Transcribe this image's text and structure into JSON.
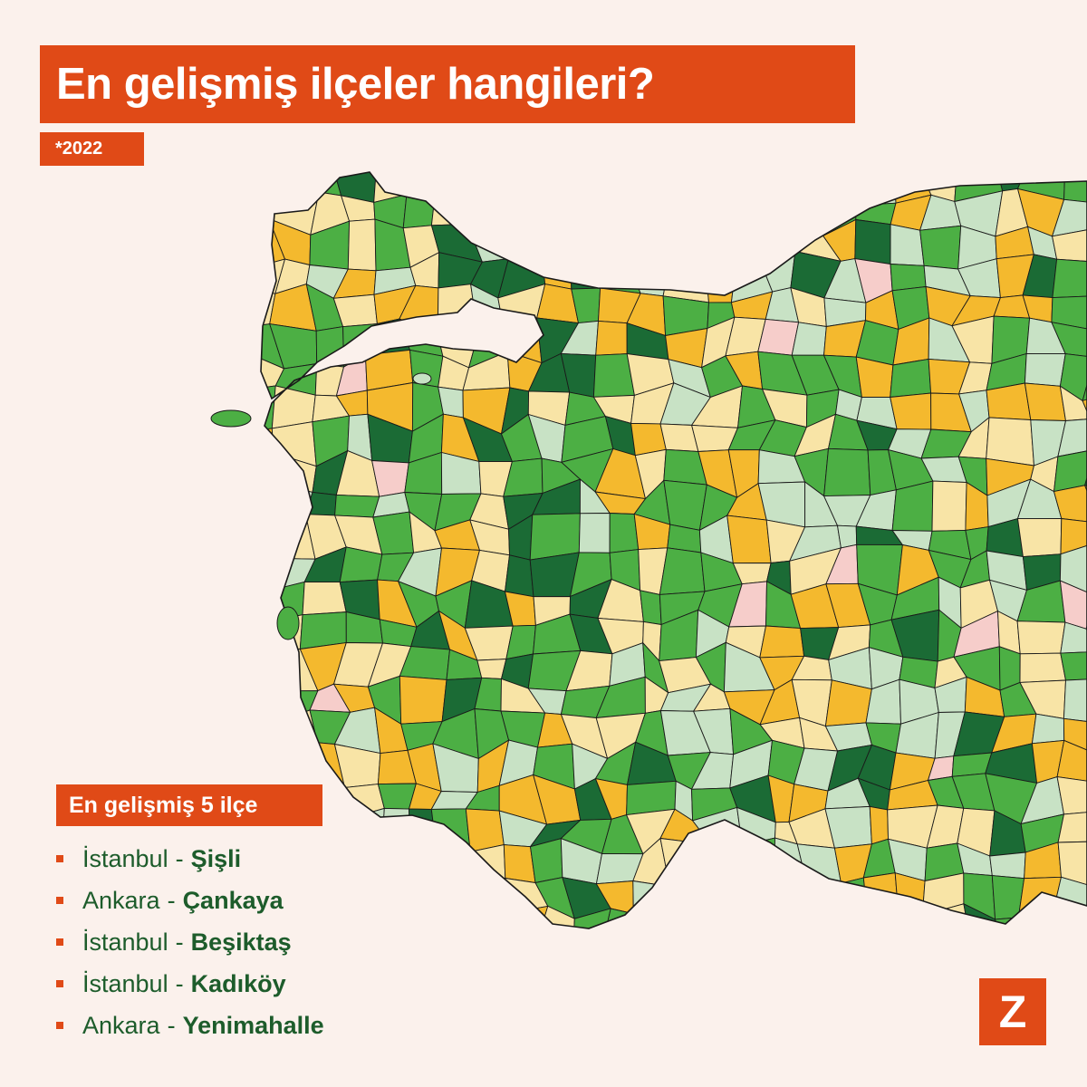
{
  "title": "En gelişmiş ilçeler hangileri?",
  "subtitle": "*2022",
  "legend": {
    "heading": "En gelişmiş 5 ilçe",
    "items": [
      {
        "province": "İstanbul",
        "separator": "-",
        "district": "Şişli"
      },
      {
        "province": "Ankara",
        "separator": "-",
        "district": "Çankaya"
      },
      {
        "province": "İstanbul",
        "separator": "-",
        "district": "Beşiktaş"
      },
      {
        "province": "İstanbul",
        "separator": "-",
        "district": "Kadıköy"
      },
      {
        "province": "Ankara",
        "separator": "-",
        "district": "Yenimahalle"
      }
    ]
  },
  "logo": "Z",
  "colors": {
    "background": "#fbf1ec",
    "accent": "#e04a17",
    "level_1_most_developed": "#1b6b35",
    "level_2": "#4caf44",
    "level_3": "#c8e2c5",
    "level_4": "#f8e4a6",
    "level_5": "#f4b92e",
    "level_6_least_developed": "#f6cdca",
    "border": "#1a1a1a"
  }
}
